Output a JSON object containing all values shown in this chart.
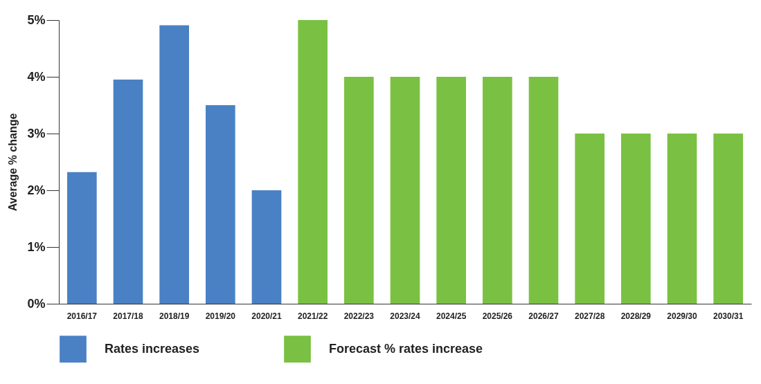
{
  "chart_data": {
    "type": "bar",
    "ylabel": "Average % change",
    "categories": [
      "2016/17",
      "2017/18",
      "2018/19",
      "2019/20",
      "2020/21",
      "2021/22",
      "2022/23",
      "2023/24",
      "2024/25",
      "2025/26",
      "2026/27",
      "2027/28",
      "2028/29",
      "2029/30",
      "2030/31"
    ],
    "series": [
      {
        "name": "Rates increases",
        "color": "#4a81c4",
        "values": [
          2.32,
          3.95,
          4.91,
          3.5,
          2.0,
          null,
          null,
          null,
          null,
          null,
          null,
          null,
          null,
          null,
          null
        ]
      },
      {
        "name": "Forecast % rates increase",
        "color": "#7ac143",
        "values": [
          null,
          null,
          null,
          null,
          null,
          5,
          4,
          4,
          4,
          4,
          4,
          3,
          3,
          3,
          3
        ]
      }
    ],
    "ylim": [
      0,
      5
    ],
    "yticks": [
      {
        "value": 0,
        "label": "0%"
      },
      {
        "value": 1,
        "label": "1%"
      },
      {
        "value": 2,
        "label": "2%"
      },
      {
        "value": 3,
        "label": "3%"
      },
      {
        "value": 4,
        "label": "4%"
      },
      {
        "value": 5,
        "label": "5%"
      }
    ],
    "grid": false,
    "legend": "bottom"
  }
}
